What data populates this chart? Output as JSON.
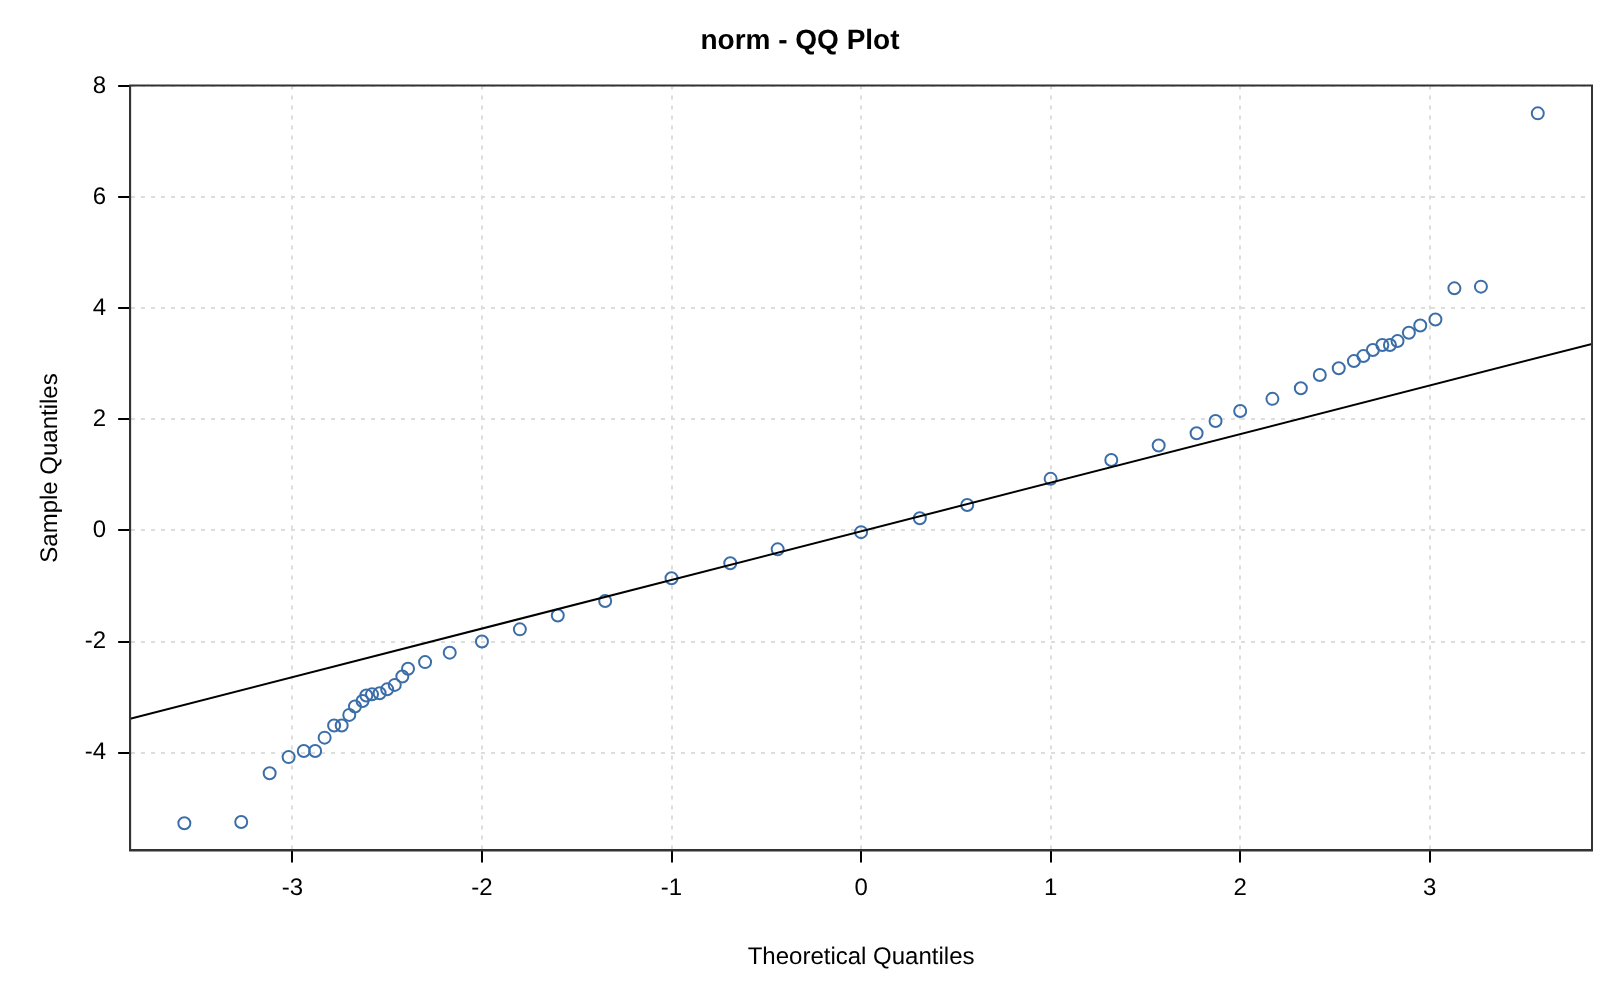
{
  "chart_data": {
    "type": "scatter",
    "title": "norm - QQ Plot",
    "xlabel": "Theoretical Quantiles",
    "ylabel": "Sample Quantiles",
    "xlim": [
      -3.856,
      3.856
    ],
    "xticks": [
      -3,
      -2,
      -1,
      0,
      1,
      2,
      3
    ],
    "ylim": [
      -5.76,
      8.01
    ],
    "yticks": [
      -4,
      -2,
      0,
      2,
      4,
      6,
      8
    ],
    "grid": true,
    "legend": false,
    "marker": "circle",
    "series": [
      {
        "color": "#3b6ea8",
        "x": [
          -3.57,
          -3.27,
          -3.12,
          -3.02,
          -2.94,
          -2.88,
          -2.83,
          -2.78,
          -2.74,
          -2.7,
          -2.67,
          -2.63,
          -2.61,
          -2.58,
          -2.54,
          -2.5,
          -2.46,
          -2.42,
          -2.39,
          -2.3,
          -2.17,
          -2.0,
          -1.8,
          -1.6,
          -1.35,
          -1.0,
          -0.69,
          -0.44,
          0,
          0.31,
          0.56,
          1.0,
          1.32,
          1.57,
          1.77,
          1.87,
          2.0,
          2.17,
          2.32,
          2.42,
          2.52,
          2.6,
          2.65,
          2.7,
          2.75,
          2.79,
          2.83,
          2.89,
          2.95,
          3.03,
          3.13,
          3.27,
          3.57
        ],
        "values": [
          -5.27,
          -5.25,
          -4.37,
          -4.08,
          -3.97,
          -3.97,
          -3.73,
          -3.51,
          -3.51,
          -3.32,
          -3.17,
          -3.07,
          -2.97,
          -2.95,
          -2.93,
          -2.86,
          -2.78,
          -2.63,
          -2.49,
          -2.37,
          -2.2,
          -2.0,
          -1.78,
          -1.53,
          -1.27,
          -0.86,
          -0.59,
          -0.34,
          -0.03,
          0.22,
          0.46,
          0.93,
          1.27,
          1.53,
          1.75,
          1.97,
          2.15,
          2.37,
          2.56,
          2.8,
          2.92,
          3.05,
          3.14,
          3.25,
          3.34,
          3.34,
          3.41,
          3.56,
          3.69,
          3.8,
          4.36,
          4.39,
          7.51
        ]
      },
      {
        "type": "line",
        "color": "#000000",
        "marker": "none",
        "x": [
          -3.856,
          3.856
        ],
        "values": [
          -3.39,
          3.36
        ]
      }
    ]
  }
}
